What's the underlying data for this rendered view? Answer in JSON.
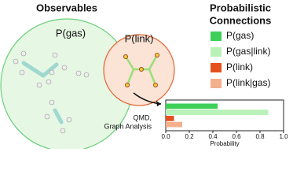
{
  "diagram": {
    "observables_title": "Observables",
    "gas_circle_label": "P(gas)",
    "link_circle_label": "P(link)",
    "arrow_label": [
      "QMD,",
      "Graph Analysis"
    ],
    "connections_title": [
      "Probabilistic",
      "Connections"
    ]
  },
  "chart_data": {
    "type": "bar",
    "orientation": "horizontal",
    "xlabel": "Probability",
    "categories": [
      null
    ],
    "series": [
      {
        "name": "P(gas)",
        "color": "#3ecf59",
        "values": [
          0.44
        ]
      },
      {
        "name": "P(gas|link)",
        "color": "#b9f2b8",
        "values": [
          0.87
        ]
      },
      {
        "name": "P(link)",
        "color": "#e4511e",
        "values": [
          0.07
        ]
      },
      {
        "name": "P(link|gas)",
        "color": "#f4b08c",
        "values": [
          0.14
        ]
      }
    ],
    "xlim": [
      0,
      1
    ],
    "xticks": [
      {
        "value": 0,
        "label": "0.0"
      },
      0.2,
      0.4,
      0.6,
      0.8,
      {
        "value": 1,
        "label": "1.0"
      }
    ]
  }
}
